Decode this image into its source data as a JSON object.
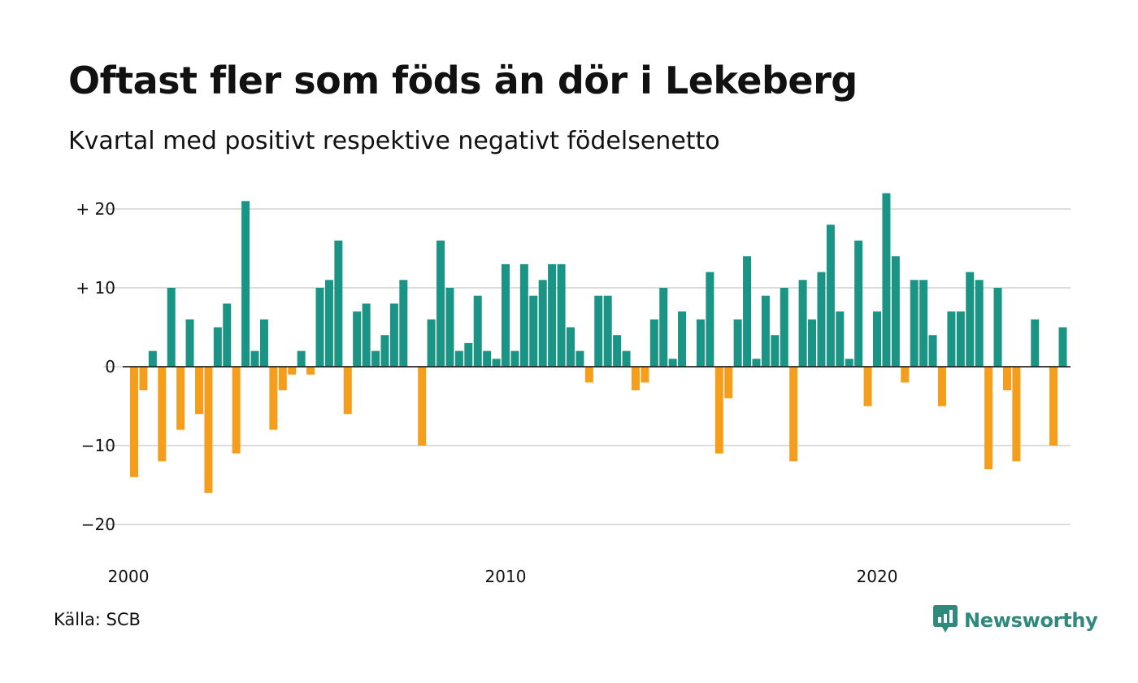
{
  "title": "Oftast fler som föds än dör i Lekeberg",
  "subtitle": "Kvartal med positivt respektive negativt födelsenetto",
  "source": "Källa: SCB",
  "brand": "Newsworthy",
  "colors": {
    "positive": "#1a9484",
    "negative": "#f59e1c",
    "brand": "#2f8a7d"
  },
  "chart_data": {
    "type": "bar",
    "title": "Oftast fler som föds än dör i Lekeberg",
    "subtitle": "Kvartal med positivt respektive negativt födelsenetto",
    "ylim": [
      -22,
      22
    ],
    "y_ticks": [
      {
        "value": 20,
        "label": "+ 20"
      },
      {
        "value": 10,
        "label": "+ 10"
      },
      {
        "value": 0,
        "label": "0"
      },
      {
        "value": -10,
        "label": "−10"
      },
      {
        "value": -20,
        "label": "−20"
      }
    ],
    "x_ticks": [
      {
        "value": 2000,
        "label": "2000"
      },
      {
        "value": 2010,
        "label": "2010"
      },
      {
        "value": 2020,
        "label": "2020"
      }
    ],
    "grid": true,
    "x_start": 2000.0,
    "x_step": 0.25,
    "values": [
      -14,
      -3,
      2,
      -12,
      10,
      -8,
      6,
      -6,
      -16,
      5,
      8,
      -11,
      21,
      2,
      6,
      -8,
      -3,
      -1,
      2,
      -1,
      10,
      11,
      16,
      -6,
      7,
      8,
      2,
      4,
      8,
      11,
      0,
      -10,
      6,
      16,
      10,
      2,
      3,
      9,
      2,
      1,
      13,
      2,
      13,
      9,
      11,
      13,
      13,
      5,
      2,
      -2,
      9,
      9,
      4,
      2,
      -3,
      -2,
      6,
      10,
      1,
      7,
      0,
      6,
      12,
      -11,
      -4,
      6,
      14,
      1,
      9,
      4,
      10,
      -12,
      11,
      6,
      12,
      18,
      7,
      1,
      16,
      -5,
      7,
      22,
      14,
      -2,
      11,
      11,
      4,
      -5,
      7,
      7,
      12,
      11,
      -13,
      10,
      -3,
      -12,
      0,
      6,
      0,
      -10,
      5
    ]
  }
}
